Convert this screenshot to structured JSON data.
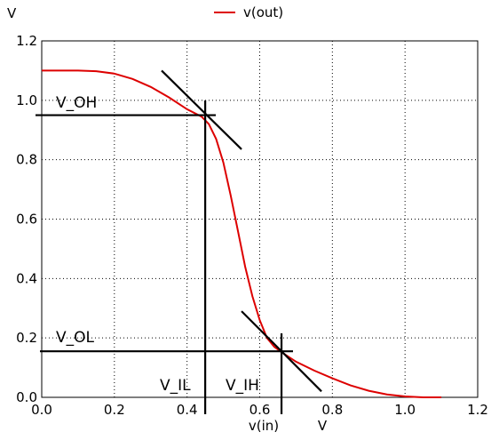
{
  "chart_data": {
    "type": "line",
    "xlabel": "v(in)",
    "xunit": "V",
    "yunit": "V",
    "xlim": [
      0.0,
      1.2
    ],
    "ylim": [
      0.0,
      1.2
    ],
    "xticks": [
      "0.0",
      "0.2",
      "0.4",
      "0.6",
      "0.8",
      "1.0",
      "1.2"
    ],
    "yticks": [
      "0.0",
      "0.2",
      "0.4",
      "0.6",
      "0.8",
      "1.0",
      "1.2"
    ],
    "grid": true,
    "legend_position": "top-center",
    "series": [
      {
        "name": "v(out)",
        "color": "#dd0000",
        "x": [
          0.0,
          0.1,
          0.15,
          0.2,
          0.25,
          0.3,
          0.35,
          0.4,
          0.44,
          0.46,
          0.48,
          0.5,
          0.52,
          0.54,
          0.56,
          0.58,
          0.6,
          0.62,
          0.64,
          0.66,
          0.7,
          0.75,
          0.8,
          0.85,
          0.9,
          0.95,
          1.0,
          1.05,
          1.1
        ],
        "y": [
          1.1,
          1.1,
          1.098,
          1.09,
          1.072,
          1.045,
          1.01,
          0.97,
          0.945,
          0.92,
          0.87,
          0.79,
          0.68,
          0.56,
          0.44,
          0.34,
          0.26,
          0.2,
          0.17,
          0.152,
          0.12,
          0.09,
          0.064,
          0.04,
          0.022,
          0.01,
          0.003,
          0.0,
          0.0
        ]
      }
    ],
    "annotations": {
      "labels": {
        "voh": "V_OH",
        "vol": "V_OL",
        "vil": "V_IL",
        "vih": "V_IH"
      },
      "voh": 0.95,
      "vol": 0.155,
      "vil": 0.45,
      "vih": 0.66,
      "tangent_upper": {
        "x": [
          0.33,
          0.55
        ],
        "y": [
          1.1,
          0.835
        ]
      },
      "tangent_lower": {
        "x": [
          0.55,
          0.77
        ],
        "y": [
          0.29,
          0.02
        ]
      }
    }
  }
}
